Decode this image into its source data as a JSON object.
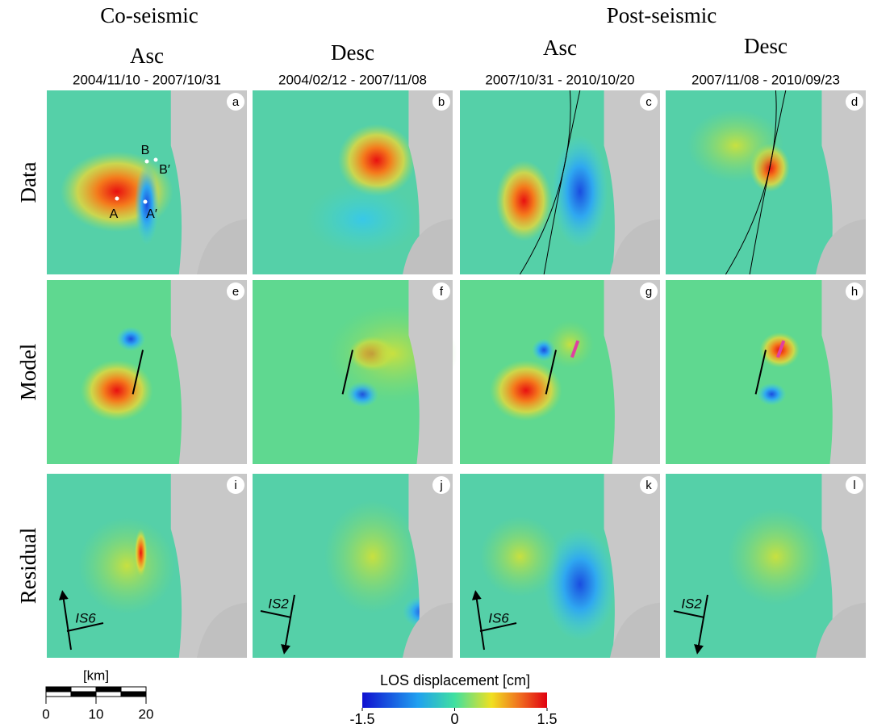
{
  "titles": {
    "co_seismic": "Co-seismic",
    "post_seismic": "Post-seismic"
  },
  "columns": [
    {
      "heading": "Asc",
      "dates": "2004/11/10 - 2007/10/31"
    },
    {
      "heading": "Desc",
      "dates": "2004/02/12 - 2007/11/08"
    },
    {
      "heading": "Asc",
      "dates": "2007/10/31 - 2010/10/20"
    },
    {
      "heading": "Desc",
      "dates": "2007/11/08 - 2010/09/23"
    }
  ],
  "rows": [
    "Data",
    "Model",
    "Residual"
  ],
  "panels": [
    "a",
    "b",
    "c",
    "d",
    "e",
    "f",
    "g",
    "h",
    "i",
    "j",
    "k",
    "l"
  ],
  "points": [
    "A",
    "A′",
    "B",
    "B′"
  ],
  "tracks": [
    "IS6",
    "IS2",
    "IS6",
    "IS2"
  ],
  "scale_bar": {
    "unit": "[km]",
    "ticks": [
      0,
      10,
      20
    ]
  },
  "colorbar": {
    "label": "LOS displacement [cm]",
    "lim": [
      -1.5,
      1.5
    ],
    "ticks": [
      -1.5,
      0,
      1.5
    ]
  }
}
